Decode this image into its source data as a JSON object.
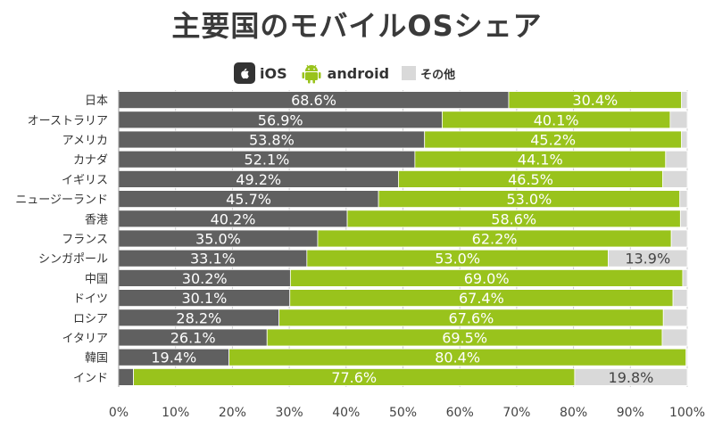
{
  "title": "主要国のモバイルOSシェア",
  "legend": {
    "ios": "iOS",
    "android": "android",
    "other": "その他"
  },
  "colors": {
    "ios": "#606060",
    "android": "#99c31c",
    "other": "#d9d9d9",
    "grid": "#cccccc"
  },
  "icons": {
    "ios": "apple-icon",
    "android": "android-robot-icon"
  },
  "chart_data": {
    "type": "bar",
    "orientation": "horizontal",
    "stacked": true,
    "title": "主要国のモバイルOSシェア",
    "categories": [
      "日本",
      "オーストラリア",
      "アメリカ",
      "カナダ",
      "イギリス",
      "ニュージーランド",
      "香港",
      "フランス",
      "シンガポール",
      "中国",
      "ドイツ",
      "ロシア",
      "イタリア",
      "韓国",
      "インド"
    ],
    "series": [
      {
        "name": "iOS",
        "values": [
          68.6,
          56.9,
          53.8,
          52.1,
          49.2,
          45.7,
          40.2,
          35.0,
          33.1,
          30.2,
          30.1,
          28.2,
          26.1,
          19.4,
          2.6
        ]
      },
      {
        "name": "android",
        "values": [
          30.4,
          40.1,
          45.2,
          44.1,
          46.5,
          53.0,
          58.6,
          62.2,
          53.0,
          69.0,
          67.4,
          67.6,
          69.5,
          80.4,
          77.6
        ]
      },
      {
        "name": "その他",
        "values": [
          1.0,
          3.0,
          1.0,
          3.8,
          4.3,
          1.3,
          1.2,
          2.8,
          13.9,
          0.8,
          2.5,
          4.2,
          4.4,
          0.2,
          19.8
        ]
      }
    ],
    "value_labels": {
      "iOS": [
        "68.6%",
        "56.9%",
        "53.8%",
        "52.1%",
        "49.2%",
        "45.7%",
        "40.2%",
        "35.0%",
        "33.1%",
        "30.2%",
        "30.1%",
        "28.2%",
        "26.1%",
        "19.4%",
        ""
      ],
      "android": [
        "30.4%",
        "40.1%",
        "45.2%",
        "44.1%",
        "46.5%",
        "53.0%",
        "58.6%",
        "62.2%",
        "53.0%",
        "69.0%",
        "67.4%",
        "67.6%",
        "69.5%",
        "80.4%",
        "77.6%"
      ],
      "その他": [
        "",
        "",
        "",
        "",
        "",
        "",
        "",
        "",
        "13.9%",
        "",
        "",
        "",
        "",
        "",
        "19.8%"
      ]
    },
    "xlim": [
      0,
      100
    ],
    "x_ticks": [
      "0%",
      "10%",
      "20%",
      "30%",
      "40%",
      "50%",
      "60%",
      "70%",
      "80%",
      "90%",
      "100%"
    ],
    "grid": true,
    "legend_position": "top"
  }
}
